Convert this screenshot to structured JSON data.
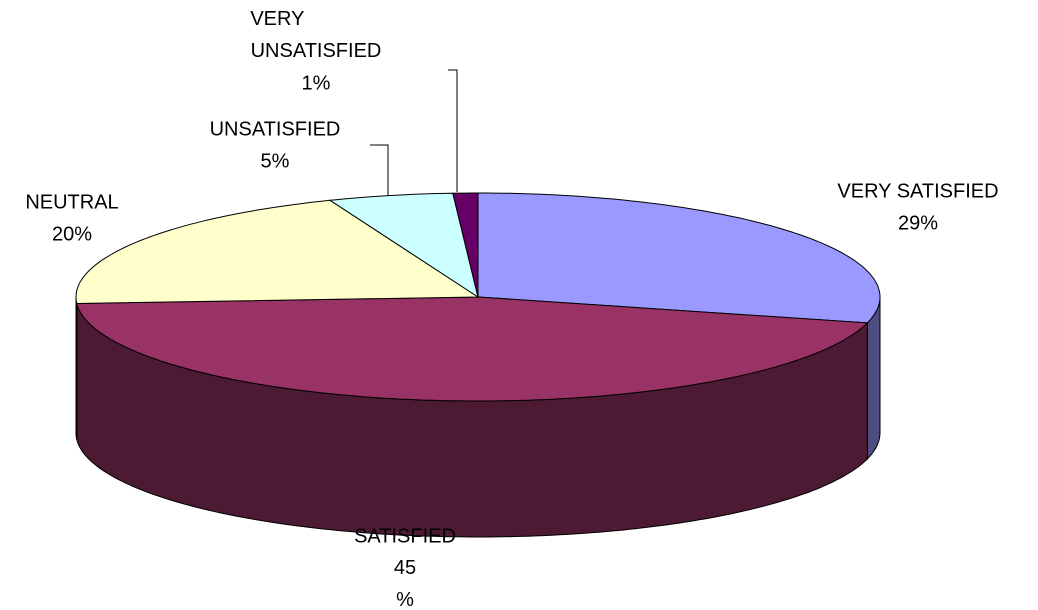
{
  "chart_data": {
    "type": "pie",
    "categories": [
      "VERY SATISFIED",
      "SATISFIED",
      "NEUTRAL",
      "UNSATISFIED",
      "VERY UNSATISFIED"
    ],
    "values": [
      29,
      45,
      20,
      5,
      1
    ],
    "value_labels": [
      "29%",
      "45%",
      "20%",
      "5%",
      "1%"
    ],
    "colors": [
      "#9999ff",
      "#993366",
      "#ffffcc",
      "#ccffff",
      "#660066"
    ]
  }
}
